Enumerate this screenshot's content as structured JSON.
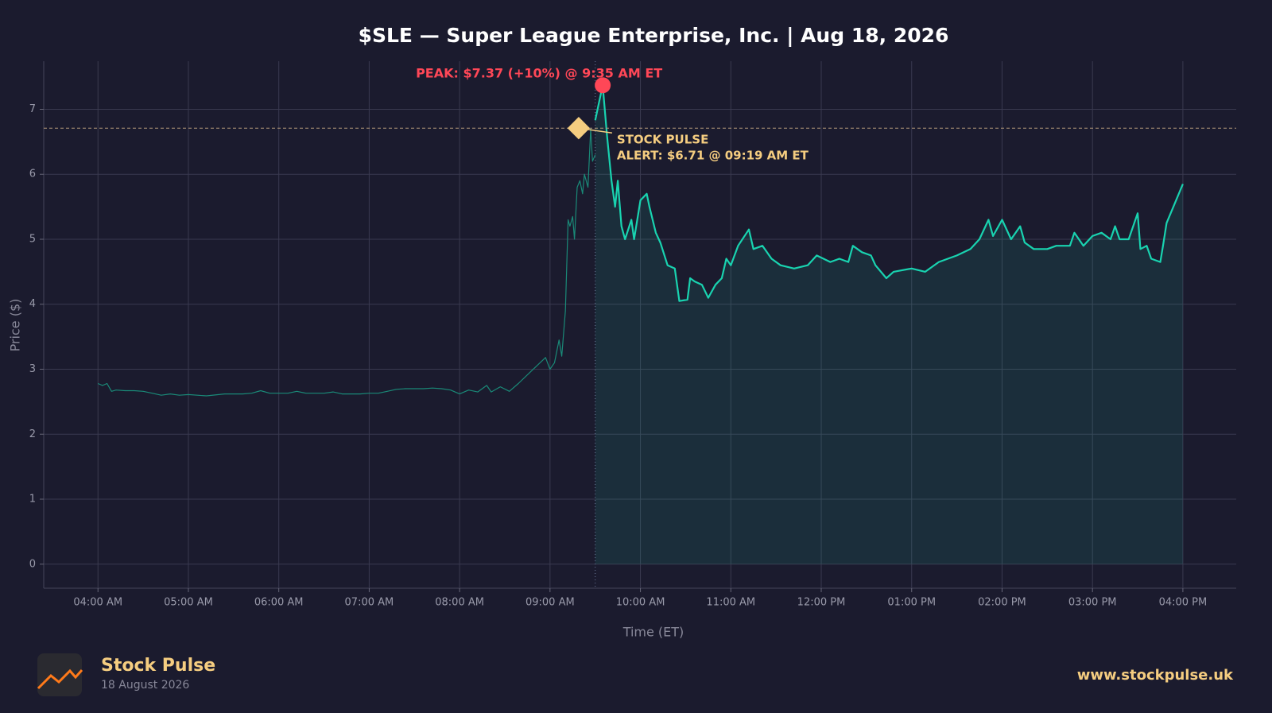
{
  "chart_data": {
    "type": "line",
    "title": "$SLE — Super League Enterprise, Inc.  |  Aug 18, 2026",
    "ylabel": "Price ($)",
    "xlabel": "Time (ET)",
    "xlim": [
      3.4,
      16.59
    ],
    "ylim": [
      -0.37,
      7.74
    ],
    "xticks": [
      {
        "value": 4,
        "label": "04:00 AM"
      },
      {
        "value": 5,
        "label": "05:00 AM"
      },
      {
        "value": 6,
        "label": "06:00 AM"
      },
      {
        "value": 7,
        "label": "07:00 AM"
      },
      {
        "value": 8,
        "label": "08:00 AM"
      },
      {
        "value": 9,
        "label": "09:00 AM"
      },
      {
        "value": 10,
        "label": "10:00 AM"
      },
      {
        "value": 11,
        "label": "11:00 AM"
      },
      {
        "value": 12,
        "label": "12:00 PM"
      },
      {
        "value": 13,
        "label": "01:00 PM"
      },
      {
        "value": 14,
        "label": "02:00 PM"
      },
      {
        "value": 15,
        "label": "03:00 PM"
      },
      {
        "value": 16,
        "label": "04:00 PM"
      }
    ],
    "yticks": [
      0,
      1,
      2,
      3,
      4,
      5,
      6,
      7
    ],
    "grid": true,
    "series": [
      {
        "color": "#1a8a78",
        "line_width": 1.2,
        "fill": false,
        "x": [
          4.0,
          4.05,
          4.1,
          4.15,
          4.2,
          4.3,
          4.4,
          4.5,
          4.6,
          4.7,
          4.8,
          4.9,
          5.0,
          5.2,
          5.4,
          5.6,
          5.7,
          5.8,
          5.9,
          6.0,
          6.1,
          6.2,
          6.3,
          6.5,
          6.6,
          6.7,
          6.9,
          7.0,
          7.1,
          7.2,
          7.3,
          7.4,
          7.6,
          7.7,
          7.8,
          7.9,
          8.0,
          8.1,
          8.2,
          8.3,
          8.35,
          8.45,
          8.55,
          8.65,
          8.8,
          8.95,
          9.0,
          9.05,
          9.1,
          9.13,
          9.17,
          9.2,
          9.22,
          9.25,
          9.27,
          9.3,
          9.33,
          9.36,
          9.38,
          9.42,
          9.45,
          9.47,
          9.5
        ],
        "values": [
          2.78,
          2.75,
          2.78,
          2.66,
          2.68,
          2.67,
          2.67,
          2.66,
          2.63,
          2.6,
          2.62,
          2.6,
          2.61,
          2.59,
          2.62,
          2.62,
          2.63,
          2.67,
          2.63,
          2.63,
          2.63,
          2.66,
          2.63,
          2.63,
          2.65,
          2.62,
          2.62,
          2.63,
          2.63,
          2.66,
          2.69,
          2.7,
          2.7,
          2.71,
          2.7,
          2.68,
          2.62,
          2.68,
          2.65,
          2.75,
          2.65,
          2.73,
          2.66,
          2.78,
          2.98,
          3.18,
          3.0,
          3.1,
          3.45,
          3.2,
          3.9,
          5.3,
          5.2,
          5.35,
          5.0,
          5.8,
          5.9,
          5.7,
          6.0,
          5.8,
          6.7,
          6.2,
          6.3
        ]
      },
      {
        "color": "#19d3b0",
        "line_width": 2.2,
        "fill": true,
        "x": [
          9.5,
          9.583,
          9.63,
          9.68,
          9.72,
          9.75,
          9.79,
          9.83,
          9.9,
          9.93,
          10.0,
          10.07,
          10.1,
          10.17,
          10.22,
          10.3,
          10.38,
          10.43,
          10.52,
          10.55,
          10.6,
          10.68,
          10.75,
          10.83,
          10.9,
          10.95,
          11.0,
          11.08,
          11.2,
          11.25,
          11.35,
          11.45,
          11.55,
          11.7,
          11.85,
          11.95,
          12.1,
          12.2,
          12.3,
          12.35,
          12.45,
          12.55,
          12.6,
          12.72,
          12.8,
          13.0,
          13.15,
          13.3,
          13.5,
          13.65,
          13.75,
          13.85,
          13.9,
          14.0,
          14.1,
          14.2,
          14.25,
          14.35,
          14.5,
          14.6,
          14.75,
          14.8,
          14.9,
          15.0,
          15.1,
          15.2,
          15.25,
          15.3,
          15.4,
          15.5,
          15.53,
          15.6,
          15.65,
          15.75,
          15.78,
          15.82,
          16.0
        ],
        "values": [
          6.83,
          7.37,
          6.6,
          5.9,
          5.5,
          5.9,
          5.2,
          5.0,
          5.3,
          5.0,
          5.6,
          5.7,
          5.5,
          5.1,
          4.95,
          4.6,
          4.55,
          4.05,
          4.07,
          4.4,
          4.35,
          4.3,
          4.1,
          4.3,
          4.4,
          4.7,
          4.6,
          4.9,
          5.15,
          4.85,
          4.9,
          4.7,
          4.6,
          4.55,
          4.6,
          4.75,
          4.65,
          4.7,
          4.65,
          4.9,
          4.8,
          4.75,
          4.6,
          4.4,
          4.5,
          4.55,
          4.5,
          4.65,
          4.75,
          4.85,
          5.0,
          5.3,
          5.05,
          5.3,
          5.0,
          5.2,
          4.95,
          4.85,
          4.85,
          4.9,
          4.9,
          5.1,
          4.9,
          5.05,
          5.1,
          5.0,
          5.2,
          5.0,
          5.0,
          5.4,
          4.85,
          4.9,
          4.7,
          4.65,
          4.9,
          5.25,
          5.85
        ]
      }
    ],
    "peak": {
      "label": "PEAK: $7.37 (+10%) @ 9:35 AM ET",
      "x": 9.583,
      "y": 7.37,
      "color": "#ff4757"
    },
    "alert": {
      "label_lines": [
        "STOCK PULSE",
        "ALERT: $6.71 @ 09:19 AM ET"
      ],
      "x": 9.317,
      "y": 6.71,
      "color": "#f5cd80"
    }
  },
  "footer": {
    "brand": "Stock Pulse",
    "date": "18 August 2026",
    "url": "www.stockpulse.uk"
  }
}
